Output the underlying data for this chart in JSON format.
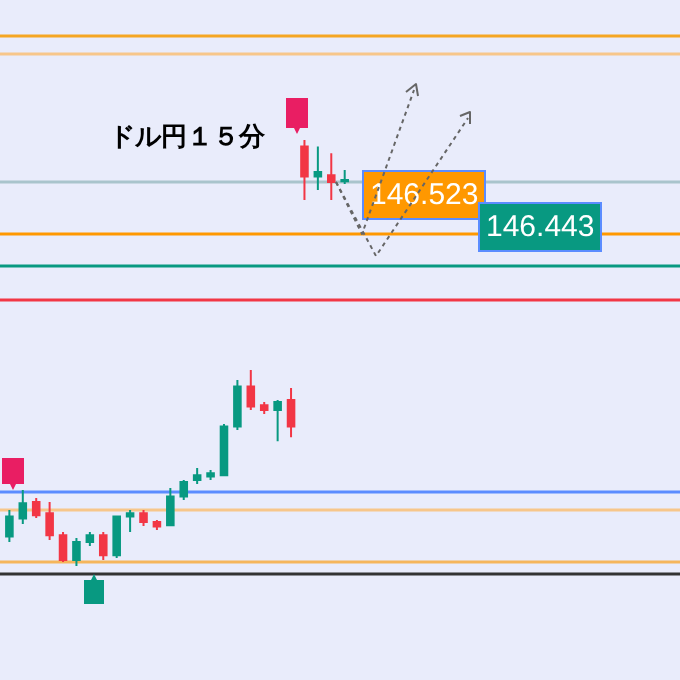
{
  "chart_data": {
    "type": "candlestick",
    "title": "ドル円１５分",
    "categories": [
      null,
      null,
      null,
      null,
      null,
      null,
      null,
      null,
      null,
      null,
      null,
      null,
      null,
      null,
      null,
      null,
      null,
      null,
      null,
      null,
      null,
      null,
      null,
      null,
      null,
      null
    ],
    "ylim": [
      145.408,
      147.108
    ],
    "ohlc": [
      [
        145.767,
        145.833,
        145.753,
        145.817
      ],
      [
        145.812,
        145.883,
        145.798,
        145.85
      ],
      [
        145.853,
        145.863,
        145.813,
        145.82
      ],
      [
        145.825,
        145.853,
        145.758,
        145.77
      ],
      [
        145.77,
        145.778,
        145.703,
        145.708
      ],
      [
        145.708,
        145.763,
        145.693,
        145.753
      ],
      [
        145.753,
        145.778,
        145.743,
        145.77
      ],
      [
        145.77,
        145.778,
        145.708,
        145.72
      ],
      [
        145.72,
        145.818,
        145.713,
        145.817
      ],
      [
        145.817,
        145.833,
        145.778,
        145.825
      ],
      [
        145.825,
        145.833,
        145.793,
        145.803
      ],
      [
        145.803,
        145.808,
        145.783,
        145.792
      ],
      [
        145.795,
        145.888,
        145.793,
        145.867
      ],
      [
        145.867,
        145.908,
        145.858,
        145.903
      ],
      [
        145.908,
        145.938,
        145.898,
        145.92
      ],
      [
        145.917,
        145.933,
        145.908,
        145.925
      ],
      [
        145.92,
        146.048,
        145.918,
        146.042
      ],
      [
        146.042,
        146.158,
        146.033,
        146.142
      ],
      [
        146.142,
        146.183,
        146.083,
        146.092
      ],
      [
        146.095,
        146.103,
        146.073,
        146.083
      ],
      [
        146.083,
        146.108,
        146.005,
        146.103
      ],
      [
        146.108,
        146.138,
        146.015,
        146.042
      ],
      [
        146.742,
        146.758,
        146.608,
        146.667
      ],
      [
        146.667,
        146.742,
        146.633,
        146.678
      ],
      [
        146.67,
        146.725,
        146.608,
        146.653
      ],
      [
        146.655,
        146.683,
        146.648,
        146.658
      ]
    ],
    "colors": [
      "#089981",
      "#089981",
      "#f23645",
      "#f23645",
      "#f23645",
      "#089981",
      "#089981",
      "#f23645",
      "#089981",
      "#089981",
      "#f23645",
      "#f23645",
      "#089981",
      "#089981",
      "#089981",
      "#089981",
      "#089981",
      "#089981",
      "#f23645",
      "#f23645",
      "#089981",
      "#f23645",
      "#f23645",
      "#089981",
      "#f23645",
      "#089981"
    ],
    "ref_lines": [
      {
        "axis": "y",
        "value": 147.018,
        "color": "#f5a623",
        "line_style": "solid"
      },
      {
        "axis": "y",
        "value": 146.973,
        "color": "#f7c68a",
        "line_style": "solid"
      },
      {
        "axis": "y",
        "value": 146.653,
        "color": "#a9c4cc",
        "line_style": "solid"
      },
      {
        "axis": "y",
        "value": 146.523,
        "label": "146.523",
        "color": "#ff9800",
        "line_style": "solid"
      },
      {
        "axis": "y",
        "value": 146.443,
        "label": "146.443",
        "color": "#089981",
        "line_style": "solid"
      },
      {
        "axis": "y",
        "value": 146.358,
        "color": "#f23645",
        "line_style": "solid"
      },
      {
        "axis": "y",
        "value": 145.878,
        "color": "#5b8cff",
        "line_style": "solid"
      },
      {
        "axis": "y",
        "value": 145.833,
        "color": "#f7c68a",
        "line_style": "solid"
      },
      {
        "axis": "y",
        "value": 145.703,
        "color": "#f5b65c",
        "line_style": "solid"
      },
      {
        "axis": "y",
        "value": 145.673,
        "color": "#333333",
        "line_style": "solid"
      }
    ]
  }
}
